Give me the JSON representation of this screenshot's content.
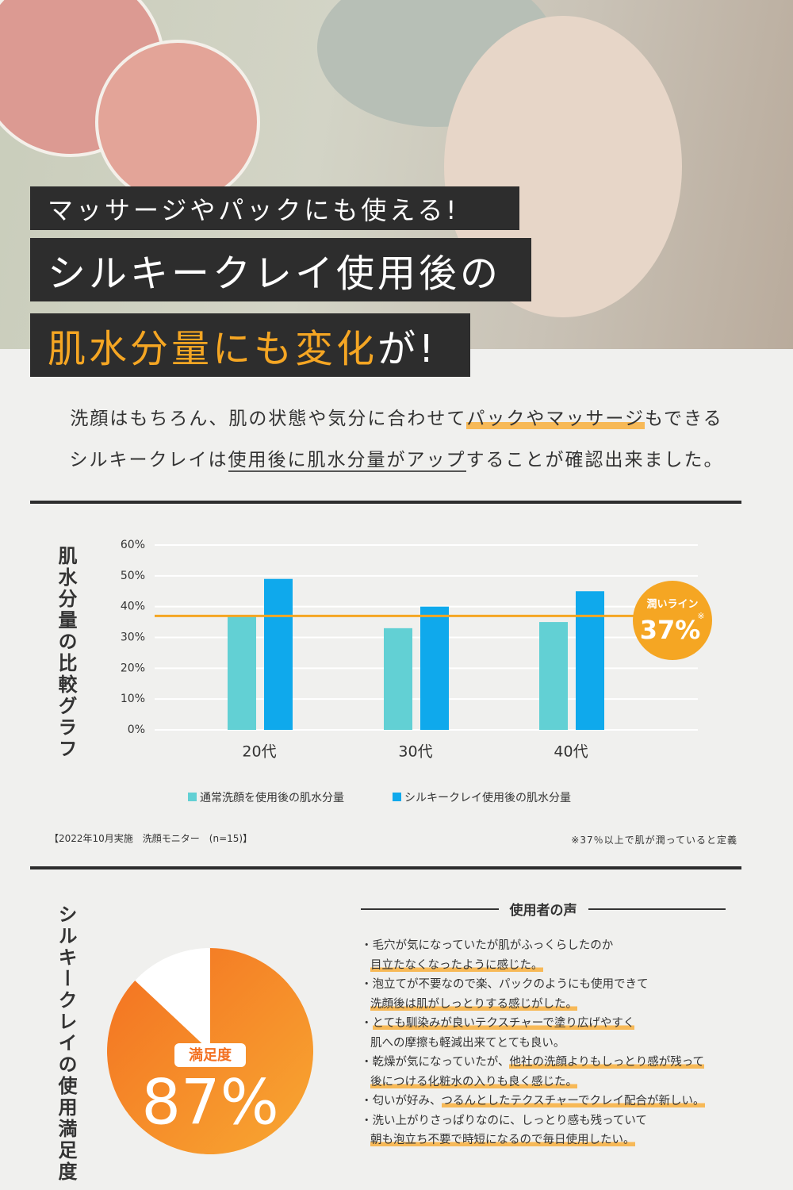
{
  "header": {
    "line1": "マッサージやパックにも使える!",
    "line2": "シルキークレイ使用後の",
    "line3": [
      "肌水分量にも変化",
      "が!"
    ]
  },
  "intro": [
    [
      "洗顔はもちろん、肌の状態や気分に合わせて",
      "パックやマッサージ",
      "もできる"
    ],
    [
      "シルキークレイは",
      "使用後に肌水分量がアップ",
      "することが確認出来ました。"
    ]
  ],
  "chart_data": [
    {
      "type": "bar",
      "y_label": "肌水分量の比較グラフ",
      "categories": [
        "20代",
        "30代",
        "40代"
      ],
      "series": [
        {
          "name": "通常洗顔を使用後の肌水分量",
          "color": "#62d0d4",
          "values": [
            37,
            33,
            35
          ]
        },
        {
          "name": "シルキークレイ使用後の肌水分量",
          "color": "#0fa9ec",
          "values": [
            49,
            40,
            45
          ]
        }
      ],
      "ylim": [
        0,
        60
      ],
      "yticks": [
        {
          "value": 0,
          "label": "0%"
        },
        {
          "value": 10,
          "label": "10%"
        },
        {
          "value": 20,
          "label": "20%"
        },
        {
          "value": 30,
          "label": "30%"
        },
        {
          "value": 40,
          "label": "40%"
        },
        {
          "value": 50,
          "label": "50%"
        },
        {
          "value": 60,
          "label": "60%"
        }
      ],
      "grid": true,
      "threshold": {
        "value": 37,
        "value_label": "37%",
        "label": "潤いライン",
        "note": "※",
        "color": "#f5a623"
      },
      "footnote_left": "【2022年10月実施　洗顔モニター　(n=15)】",
      "footnote_right": "※37％以上で肌が潤っていると定義"
    },
    {
      "type": "pie",
      "title": "シルキークレイの使用満足度",
      "categories": [
        "満足度"
      ],
      "values": [
        87
      ],
      "value_labels": [
        "87%"
      ],
      "colors": [
        "#f37021",
        "#f8a832"
      ]
    }
  ],
  "voices": {
    "title": "使用者の声",
    "items": [
      [
        [
          "・毛穴が気になっていたが肌がふっくらしたのか"
        ],
        [
          "目立たなくなったように感じた。"
        ]
      ],
      [
        [
          "・泡立てが不要なので楽、パックのようにも使用できて"
        ],
        [
          "洗顔後は肌がしっとりする感じがした。"
        ]
      ],
      [
        [
          "・",
          "とても馴染みが良いテクスチャーで塗り広げやすく"
        ],
        [
          "肌への摩擦も軽減出来てとても良い。"
        ]
      ],
      [
        [
          "・乾燥が気になっていたが、",
          "他社の洗顔よりもしっとり感が残って"
        ],
        [
          "後につける化粧水の入りも良く感じた。"
        ]
      ],
      [
        [
          "・匂いが好み、",
          "つるんとしたテクスチャーでクレイ配合が新しい。"
        ]
      ],
      [
        [
          "・洗い上がりさっぱりなのに、しっとり感も残っていて"
        ],
        [
          "朝も泡立ち不要で時短になるので毎日使用したい。"
        ]
      ]
    ]
  }
}
